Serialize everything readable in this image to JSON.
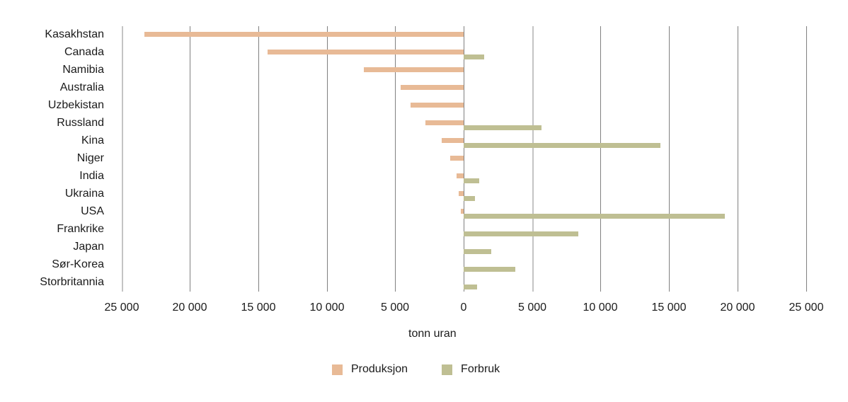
{
  "chart_data": {
    "type": "bar",
    "orientation": "horizontal",
    "title": "",
    "xlabel": "tonn uran",
    "ylabel": "",
    "xlim": [
      -25000,
      25000
    ],
    "grid": true,
    "legend_position": "bottom",
    "categories": [
      "Kasakhstan",
      "Canada",
      "Namibia",
      "Australia",
      "Uzbekistan",
      "Russland",
      "Kina",
      "Niger",
      "India",
      "Ukraina",
      "USA",
      "Frankrike",
      "Japan",
      "Sør-Korea",
      "Storbritannia"
    ],
    "series": [
      {
        "name": "Produksjon",
        "color": "#e8ba96",
        "direction": "left",
        "values": [
          23300,
          14300,
          7300,
          4600,
          3900,
          2800,
          1600,
          1000,
          500,
          350,
          200,
          0,
          0,
          0,
          0
        ]
      },
      {
        "name": "Forbruk",
        "color": "#bfbf93",
        "direction": "right",
        "values": [
          0,
          1500,
          0,
          0,
          0,
          5700,
          14400,
          0,
          1150,
          850,
          19100,
          8400,
          2000,
          3800,
          1000
        ]
      }
    ],
    "x_ticks": [
      {
        "value": -25000,
        "label": "25 000"
      },
      {
        "value": -20000,
        "label": "20 000"
      },
      {
        "value": -15000,
        "label": "15 000"
      },
      {
        "value": -10000,
        "label": "10 000"
      },
      {
        "value": -5000,
        "label": "5 000"
      },
      {
        "value": 0,
        "label": "0"
      },
      {
        "value": 5000,
        "label": "5 000"
      },
      {
        "value": 10000,
        "label": "10 000"
      },
      {
        "value": 15000,
        "label": "15 000"
      },
      {
        "value": 20000,
        "label": "20 000"
      },
      {
        "value": 25000,
        "label": "25 000"
      }
    ]
  },
  "legend": {
    "items": [
      {
        "label": "Produksjon",
        "color": "#e8ba96"
      },
      {
        "label": "Forbruk",
        "color": "#bfbf93"
      }
    ]
  },
  "axis": {
    "x_title": "tonn uran"
  }
}
